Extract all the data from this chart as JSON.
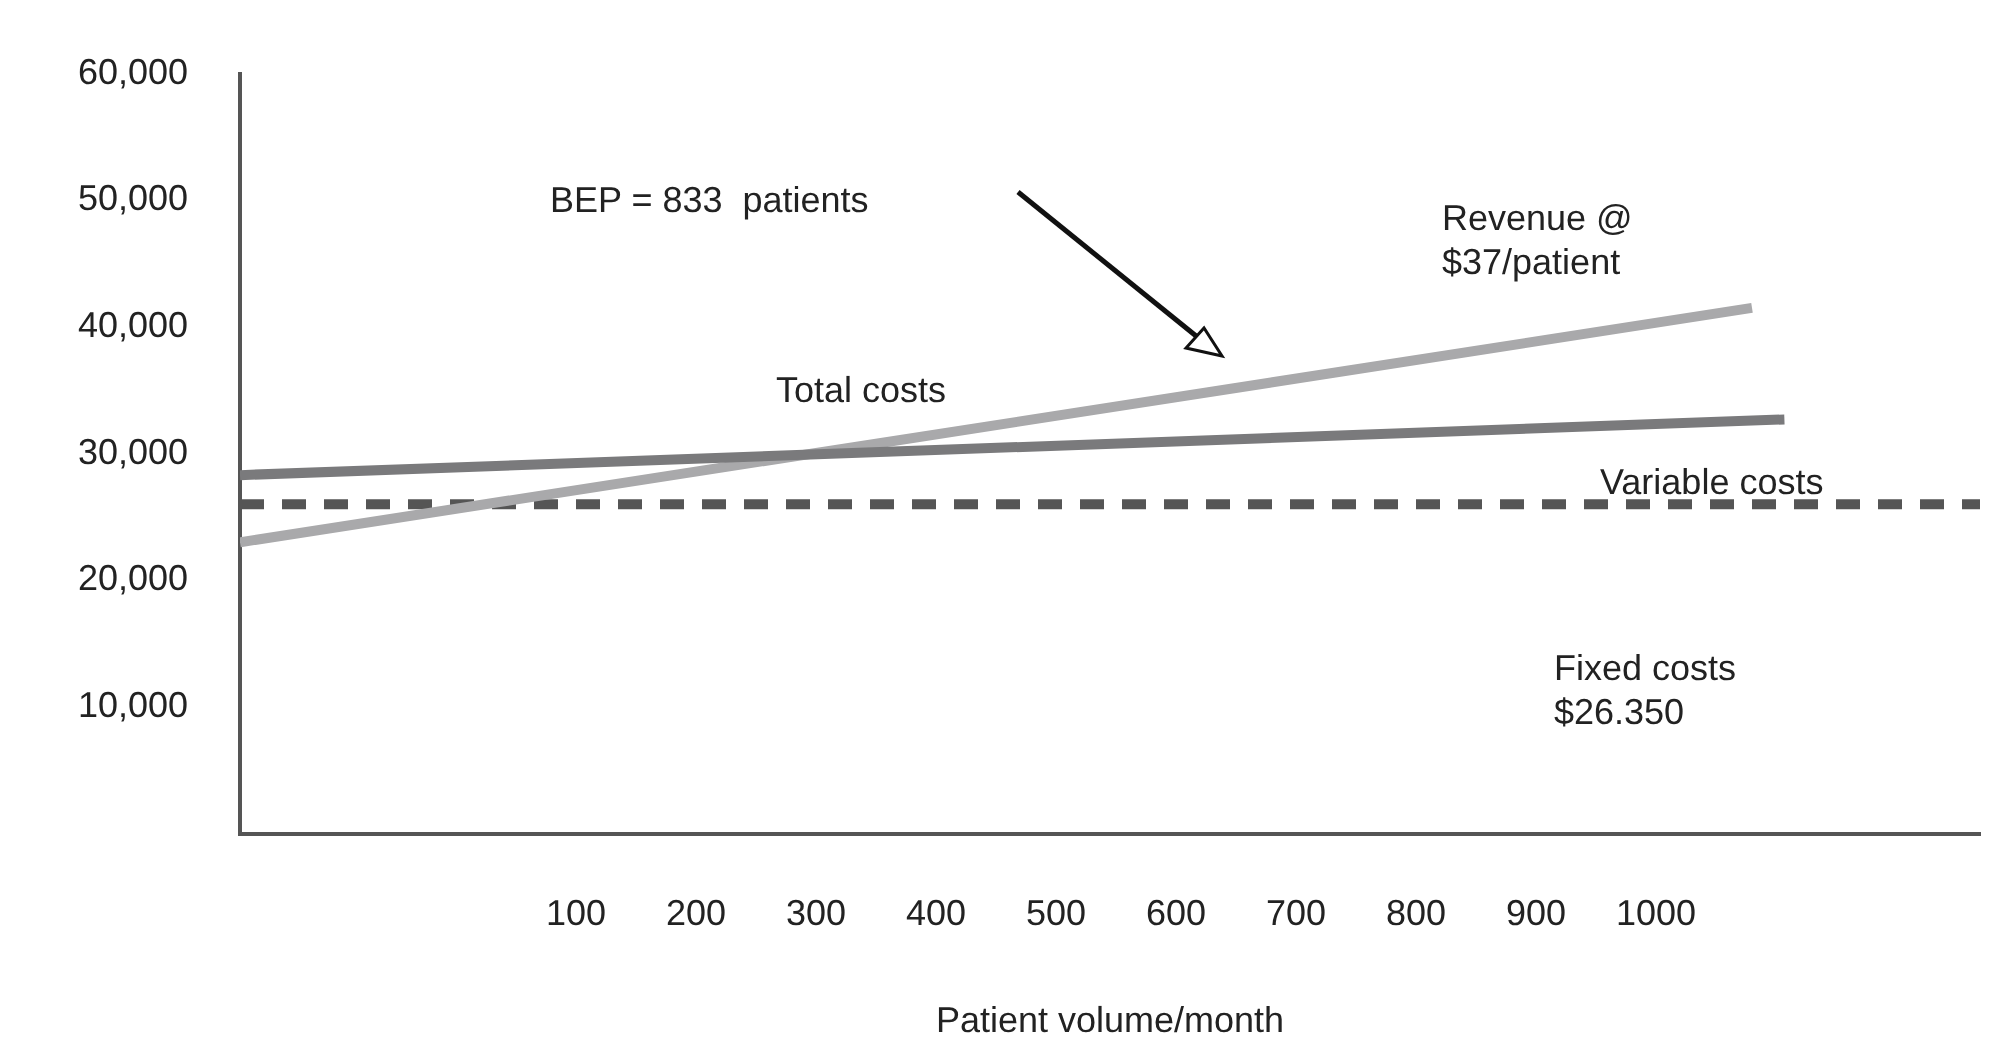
{
  "chart_data": {
    "type": "line",
    "xlabel": "Patient volume/month",
    "xlim": [
      -180,
      1270
    ],
    "xticks": [
      100,
      200,
      300,
      400,
      500,
      600,
      700,
      800,
      900,
      1000
    ],
    "ylim": [
      0,
      60000
    ],
    "yticks": [
      {
        "value": 10000,
        "label": "10,000"
      },
      {
        "value": 20000,
        "label": "20,000"
      },
      {
        "value": 30000,
        "label": "30,000"
      },
      {
        "value": 40000,
        "label": "40,000"
      },
      {
        "value": 50000,
        "label": "50,000"
      },
      {
        "value": 60000,
        "label": "60,000"
      }
    ],
    "grid": false,
    "legend": false,
    "marker": "none",
    "series": [
      {
        "color": "#7a7a7c",
        "x": [
          -180,
          1107
        ],
        "values": [
          28300,
          32700
        ],
        "line_style": "solid"
      },
      {
        "color": "#a9a9ab",
        "x": [
          -180,
          1080
        ],
        "values": [
          23000,
          41500
        ],
        "line_style": "solid"
      },
      {
        "color": "#555555",
        "x": [
          -180,
          1270
        ],
        "values": [
          26000,
          26000
        ],
        "line_style": "dashed"
      }
    ],
    "annotations": [
      "BEP = 833  patients",
      "Total costs",
      "Revenue @\n$37/patient",
      "Variable costs",
      "Fixed costs\n$26.350"
    ]
  }
}
